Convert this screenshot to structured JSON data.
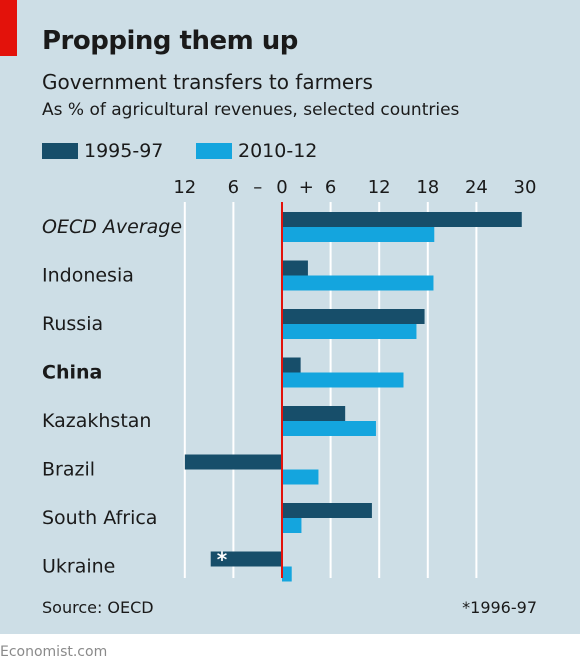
{
  "header": {
    "title": "Propping them up",
    "subtitle": "Government transfers to farmers",
    "units": "As % of agricultural revenues, selected countries"
  },
  "legend": [
    {
      "label": "1995-97",
      "color": "#174e6a"
    },
    {
      "label": "2010-12",
      "color": "#14a5de"
    }
  ],
  "chart_data": {
    "type": "bar",
    "orientation": "horizontal",
    "xlim": [
      -12,
      30
    ],
    "ticks": [
      {
        "value": -12,
        "label": "12"
      },
      {
        "value": -6,
        "label": "6"
      },
      {
        "value": -3,
        "label": "–"
      },
      {
        "value": 0,
        "label": "0"
      },
      {
        "value": 3,
        "label": "+"
      },
      {
        "value": 6,
        "label": "6"
      },
      {
        "value": 12,
        "label": "12"
      },
      {
        "value": 18,
        "label": "18"
      },
      {
        "value": 24,
        "label": "24"
      },
      {
        "value": 30,
        "label": "30"
      }
    ],
    "gridlines": [
      -12,
      -6,
      6,
      12,
      18,
      24
    ],
    "categories": [
      "OECD Average",
      "Indonesia",
      "Russia",
      "China",
      "Kazakhstan",
      "Brazil",
      "South Africa",
      "Ukraine"
    ],
    "category_styles": [
      "italic",
      "normal",
      "normal",
      "bold",
      "normal",
      "normal",
      "normal",
      "normal"
    ],
    "series": [
      {
        "name": "1995-97",
        "color": "#174e6a",
        "values": [
          29.6,
          3.2,
          17.6,
          2.3,
          7.8,
          -12.0,
          11.1,
          -8.8
        ]
      },
      {
        "name": "2010-12",
        "color": "#14a5de",
        "values": [
          18.8,
          18.7,
          16.6,
          15.0,
          11.6,
          4.5,
          2.4,
          1.2
        ]
      }
    ],
    "annotations": [
      {
        "category": "Ukraine",
        "series": "1995-97",
        "text": "*"
      }
    ],
    "zero_line_color": "#e3120b"
  },
  "footer": {
    "source": "Source: OECD",
    "footnote": "*1996-97",
    "brand": "Economist.com"
  }
}
